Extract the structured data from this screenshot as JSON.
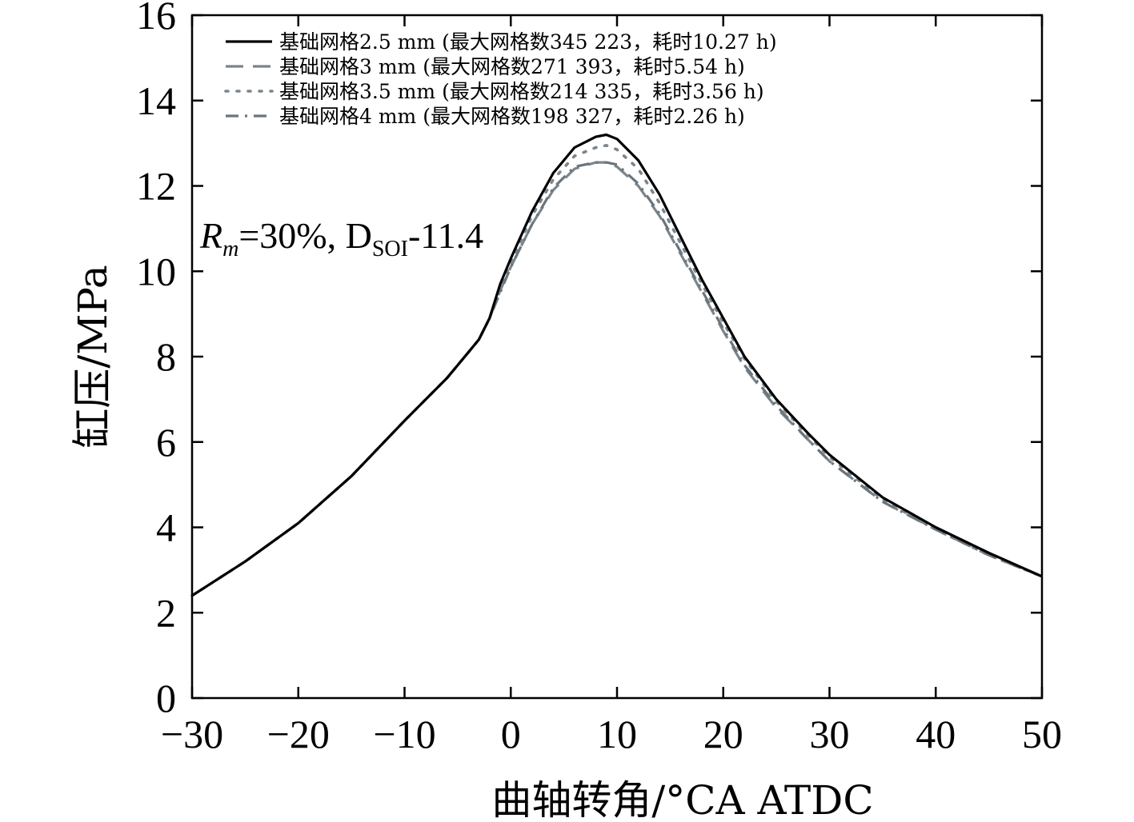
{
  "chart_data": {
    "type": "line",
    "xlabel": "曲轴转角/°CA ATDC",
    "ylabel": "缸压/MPa",
    "xlim": [
      -30,
      50
    ],
    "ylim": [
      0,
      16
    ],
    "xticks": [
      -30,
      -20,
      -10,
      0,
      10,
      20,
      30,
      40,
      50
    ],
    "yticks": [
      0,
      2,
      4,
      6,
      8,
      10,
      12,
      14,
      16
    ],
    "xtick_labels": [
      "−30",
      "−20",
      "−10",
      "0",
      "10",
      "20",
      "30",
      "40",
      "50"
    ],
    "ytick_labels": [
      "0",
      "2",
      "4",
      "6",
      "8",
      "10",
      "12",
      "14",
      "16"
    ],
    "annotation": {
      "r_symbol": "R",
      "r_subscript": "m",
      "r_value": "=30%, D",
      "d_subscript": "SOI",
      "d_value": "-11.4"
    },
    "legend_position": "top-left",
    "series": [
      {
        "name": "基础网格2.5 mm (最大网格数345 223，耗时10.27 h)",
        "style": "solid",
        "color": "#000000",
        "x": [
          -30,
          -25,
          -20,
          -15,
          -10,
          -6,
          -4,
          -3,
          -2,
          -1,
          0,
          2,
          4,
          6,
          8,
          9,
          10,
          12,
          14,
          16,
          18,
          20,
          22,
          25,
          28,
          30,
          35,
          40,
          45,
          50
        ],
        "y": [
          2.4,
          3.2,
          4.1,
          5.2,
          6.5,
          7.5,
          8.1,
          8.4,
          8.9,
          9.7,
          10.3,
          11.4,
          12.3,
          12.9,
          13.15,
          13.2,
          13.1,
          12.6,
          11.8,
          10.8,
          9.8,
          8.9,
          8.0,
          7.0,
          6.2,
          5.7,
          4.7,
          4.0,
          3.4,
          2.85
        ]
      },
      {
        "name": "基础网格3 mm (最大网格数271 393，耗时5.54 h)",
        "style": "dashed",
        "color": "#7a858c",
        "x": [
          -30,
          -25,
          -20,
          -15,
          -10,
          -6,
          -4,
          -3,
          -2,
          -1,
          0,
          2,
          4,
          6,
          8,
          9,
          10,
          12,
          14,
          16,
          18,
          20,
          22,
          25,
          28,
          30,
          35,
          40,
          45,
          50
        ],
        "y": [
          2.4,
          3.2,
          4.1,
          5.2,
          6.5,
          7.5,
          8.1,
          8.4,
          8.9,
          9.55,
          10.1,
          11.1,
          11.9,
          12.4,
          12.55,
          12.55,
          12.45,
          12.0,
          11.3,
          10.4,
          9.5,
          8.6,
          7.75,
          6.8,
          6.05,
          5.55,
          4.6,
          3.95,
          3.35,
          2.85
        ]
      },
      {
        "name": "基础网格3.5 mm (最大网格数214 335，耗时3.56 h)",
        "style": "dotted",
        "color": "#7a858c",
        "x": [
          -30,
          -25,
          -20,
          -15,
          -10,
          -6,
          -4,
          -3,
          -2,
          -1,
          0,
          2,
          4,
          6,
          8,
          9,
          10,
          12,
          14,
          16,
          18,
          20,
          22,
          25,
          28,
          30,
          35,
          40,
          45,
          50
        ],
        "y": [
          2.4,
          3.2,
          4.1,
          5.2,
          6.5,
          7.5,
          8.1,
          8.4,
          8.9,
          9.6,
          10.2,
          11.3,
          12.15,
          12.7,
          12.9,
          12.95,
          12.85,
          12.4,
          11.6,
          10.65,
          9.7,
          8.8,
          7.95,
          6.95,
          6.15,
          5.65,
          4.65,
          3.95,
          3.35,
          2.85
        ]
      },
      {
        "name": "基础网格4 mm (最大网格数198 327，耗时2.26 h)",
        "style": "dashdot",
        "color": "#6b757c",
        "x": [
          -30,
          -25,
          -20,
          -15,
          -10,
          -6,
          -4,
          -3,
          -2,
          -1,
          0,
          2,
          4,
          6,
          8,
          9,
          10,
          12,
          14,
          16,
          18,
          20,
          22,
          25,
          28,
          30,
          35,
          40,
          45,
          50
        ],
        "y": [
          2.4,
          3.2,
          4.1,
          5.2,
          6.5,
          7.5,
          8.1,
          8.4,
          8.9,
          9.5,
          10.1,
          11.1,
          11.95,
          12.45,
          12.55,
          12.55,
          12.5,
          12.05,
          11.35,
          10.45,
          9.55,
          8.65,
          7.8,
          6.85,
          6.05,
          5.55,
          4.6,
          3.95,
          3.35,
          2.85
        ]
      }
    ]
  }
}
